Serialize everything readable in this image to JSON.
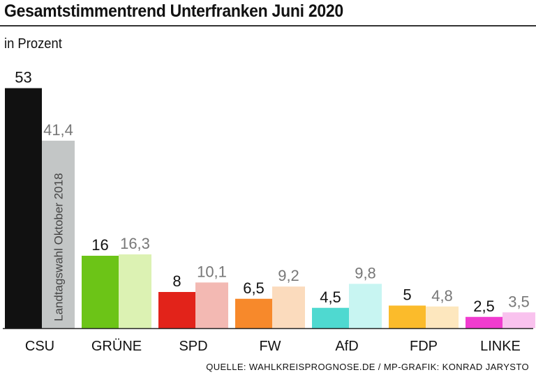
{
  "header": {
    "title": "Gesamtstimmentrend Unterfranken Juni 2020",
    "unit": "in Prozent"
  },
  "footer": {
    "source": "QUELLE: WAHLKREISPROGNOSE.DE / MP-GRAFIK: KONRAD JARYSTO"
  },
  "chart_data": {
    "type": "bar",
    "title": "Gesamtstimmentrend Unterfranken Juni 2020",
    "ylabel": "in Prozent",
    "ylim": [
      0,
      55
    ],
    "grid": false,
    "categories": [
      "CSU",
      "GRÜNE",
      "SPD",
      "FW",
      "AfD",
      "FDP",
      "LINKE"
    ],
    "series": [
      {
        "values": [
          53,
          16,
          8,
          6.5,
          4.5,
          5,
          2.5
        ],
        "labels": [
          "53",
          "16",
          "8",
          "6,5",
          "4,5",
          "5",
          "2,5"
        ],
        "colors": [
          "#111111",
          "#6cc417",
          "#e2231a",
          "#f7892b",
          "#4fd9d0",
          "#fbbb2b",
          "#f03ccf"
        ]
      },
      {
        "name": "Landtagswahl Oktober 2018",
        "values": [
          41.4,
          16.3,
          10.1,
          9.2,
          9.8,
          4.8,
          3.5
        ],
        "labels": [
          "41,4",
          "16,3",
          "10,1",
          "9,2",
          "9,8",
          "4,8",
          "3,5"
        ],
        "colors": [
          "#c3c6c6",
          "#dcf2b3",
          "#f3b9b3",
          "#fbdbbd",
          "#c8f5f2",
          "#fde7be",
          "#f9c2ee"
        ]
      }
    ],
    "value_label_colors": [
      "#111111",
      "#777777"
    ]
  }
}
